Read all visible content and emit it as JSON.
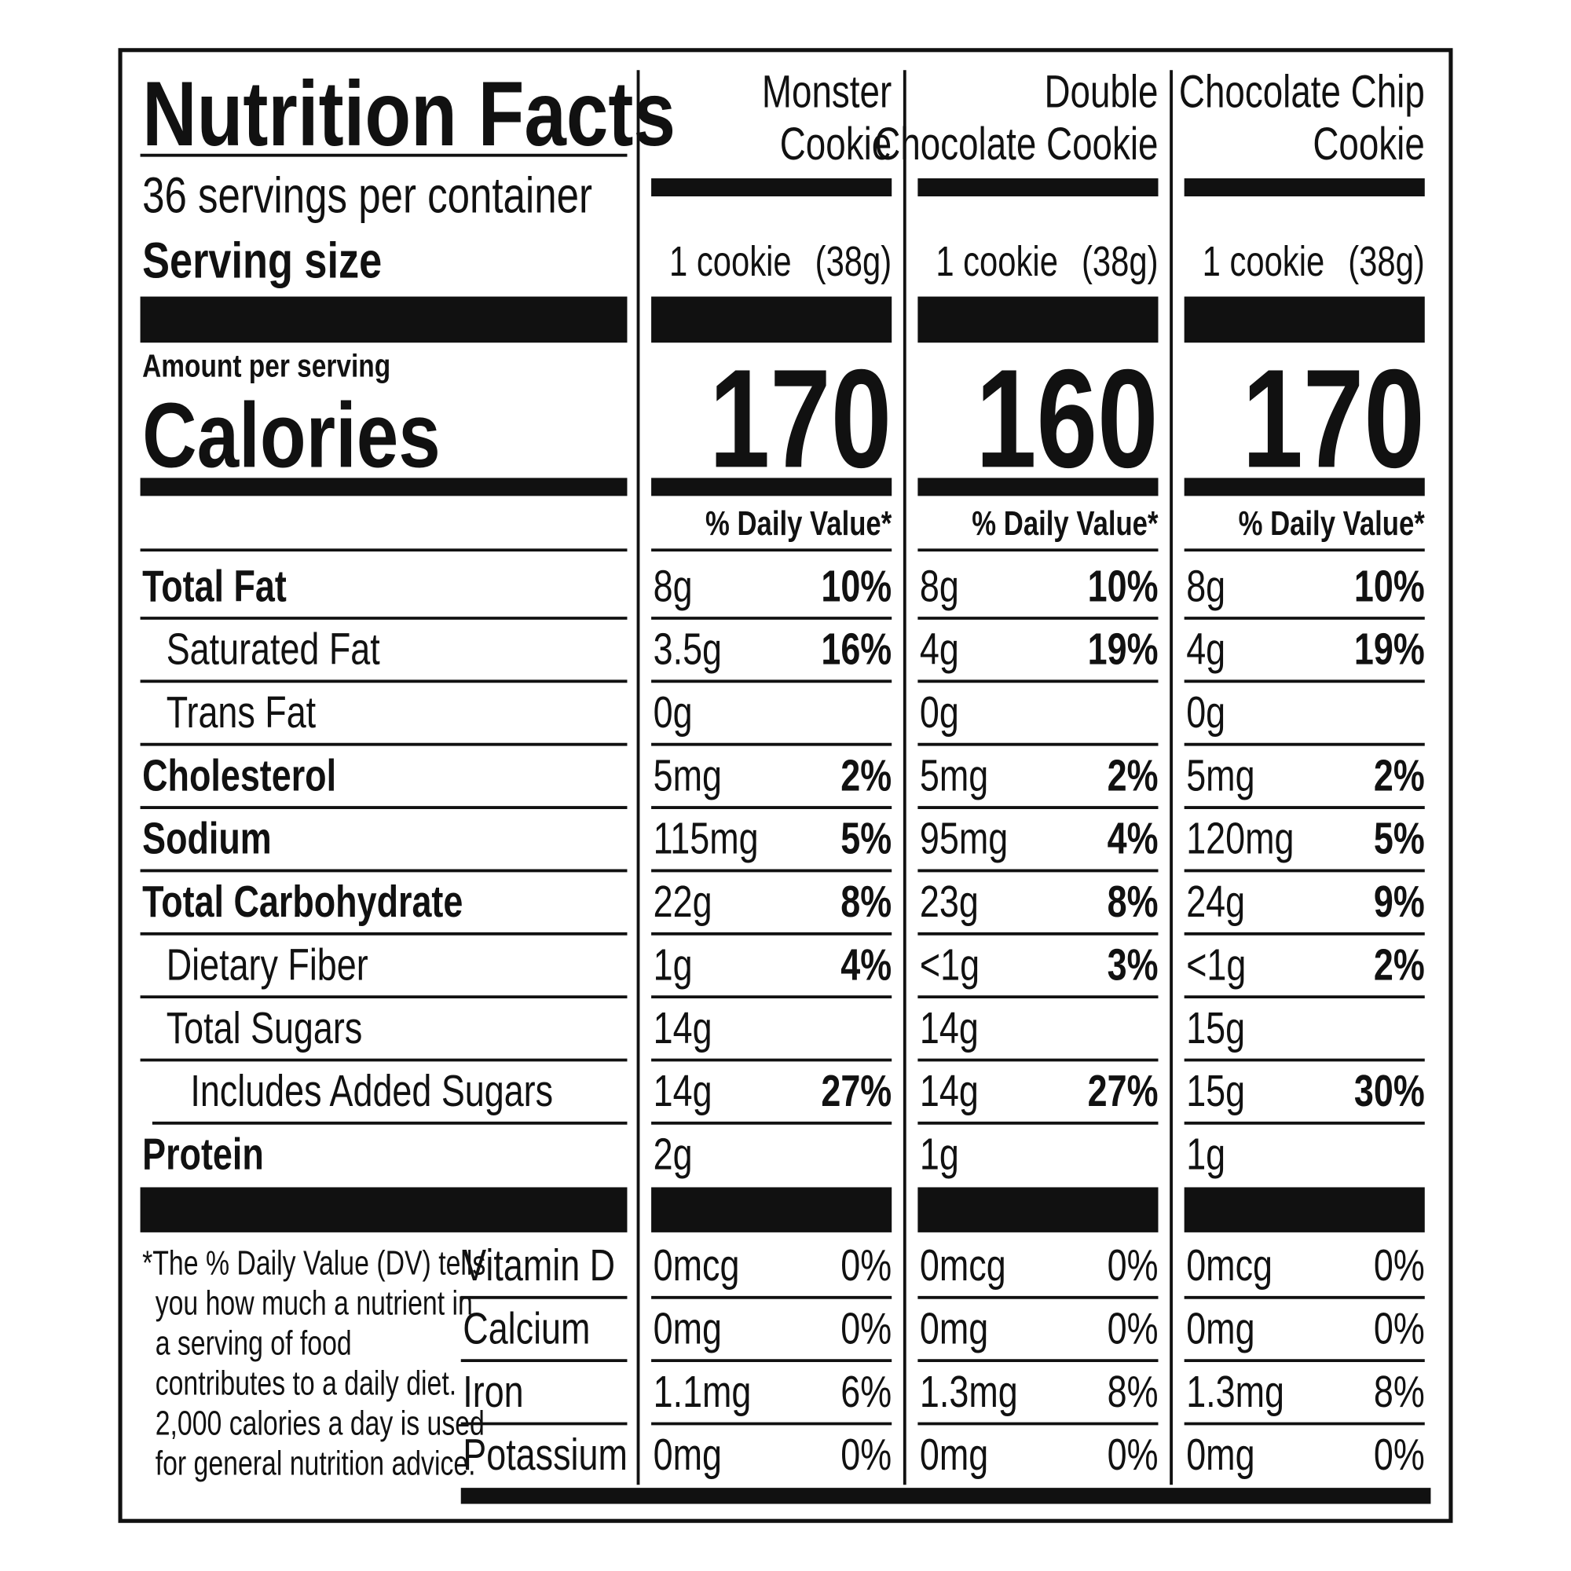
{
  "header": {
    "title": "Nutrition Facts",
    "servings": "36 servings per container",
    "serving_size_label": "Serving size",
    "amount_label": "Amount per serving",
    "calories_label": "Calories"
  },
  "nutrient_labels": [
    "Total Fat",
    "Saturated Fat",
    "Trans Fat",
    "Cholesterol",
    "Sodium",
    "Total Carbohydrate",
    "Dietary Fiber",
    "Total Sugars",
    "Includes Added Sugars",
    "Protein"
  ],
  "vitamin_labels": [
    "Vitamin D",
    "Calcium",
    "Iron",
    "Potassium"
  ],
  "footnote": [
    "*The % Daily Value (DV) tells",
    "you how much a nutrient in",
    "a serving of food",
    "contributes to a daily diet.",
    "2,000 calories a day is used",
    "for general nutrition advice."
  ],
  "products": [
    {
      "name": [
        "Monster",
        "Cookie"
      ],
      "serving_qty": "1 cookie",
      "serving_weight": "(38g)",
      "calories": "170",
      "dv_heading": "% Daily Value*",
      "nutrients": [
        [
          "8g",
          "10%"
        ],
        [
          "3.5g",
          "16%"
        ],
        [
          "0g",
          null
        ],
        [
          "5mg",
          "2%"
        ],
        [
          "115mg",
          "5%"
        ],
        [
          "22g",
          "8%"
        ],
        [
          "1g",
          "4%"
        ],
        [
          "14g",
          null
        ],
        [
          "14g",
          "27%"
        ],
        [
          "2g",
          null
        ]
      ],
      "vitamins": [
        [
          "0mcg",
          "0%"
        ],
        [
          "0mg",
          "0%"
        ],
        [
          "1.1mg",
          "6%"
        ],
        [
          "0mg",
          "0%"
        ]
      ]
    },
    {
      "name": [
        "Double",
        "Chocolate Cookie"
      ],
      "serving_qty": "1 cookie",
      "serving_weight": "(38g)",
      "calories": "160",
      "dv_heading": "% Daily Value*",
      "nutrients": [
        [
          "8g",
          "10%"
        ],
        [
          "4g",
          "19%"
        ],
        [
          "0g",
          null
        ],
        [
          "5mg",
          "2%"
        ],
        [
          "95mg",
          "4%"
        ],
        [
          "23g",
          "8%"
        ],
        [
          "<1g",
          "3%"
        ],
        [
          "14g",
          null
        ],
        [
          "14g",
          "27%"
        ],
        [
          "1g",
          null
        ]
      ],
      "vitamins": [
        [
          "0mcg",
          "0%"
        ],
        [
          "0mg",
          "0%"
        ],
        [
          "1.3mg",
          "8%"
        ],
        [
          "0mg",
          "0%"
        ]
      ]
    },
    {
      "name": [
        "Chocolate Chip",
        "Cookie"
      ],
      "serving_qty": "1 cookie",
      "serving_weight": "(38g)",
      "calories": "170",
      "dv_heading": "% Daily Value*",
      "nutrients": [
        [
          "8g",
          "10%"
        ],
        [
          "4g",
          "19%"
        ],
        [
          "0g",
          null
        ],
        [
          "5mg",
          "2%"
        ],
        [
          "120mg",
          "5%"
        ],
        [
          "24g",
          "9%"
        ],
        [
          "<1g",
          "2%"
        ],
        [
          "15g",
          null
        ],
        [
          "15g",
          "30%"
        ],
        [
          "1g",
          null
        ]
      ],
      "vitamins": [
        [
          "0mcg",
          "0%"
        ],
        [
          "0mg",
          "0%"
        ],
        [
          "1.3mg",
          "8%"
        ],
        [
          "0mg",
          "0%"
        ]
      ]
    }
  ]
}
